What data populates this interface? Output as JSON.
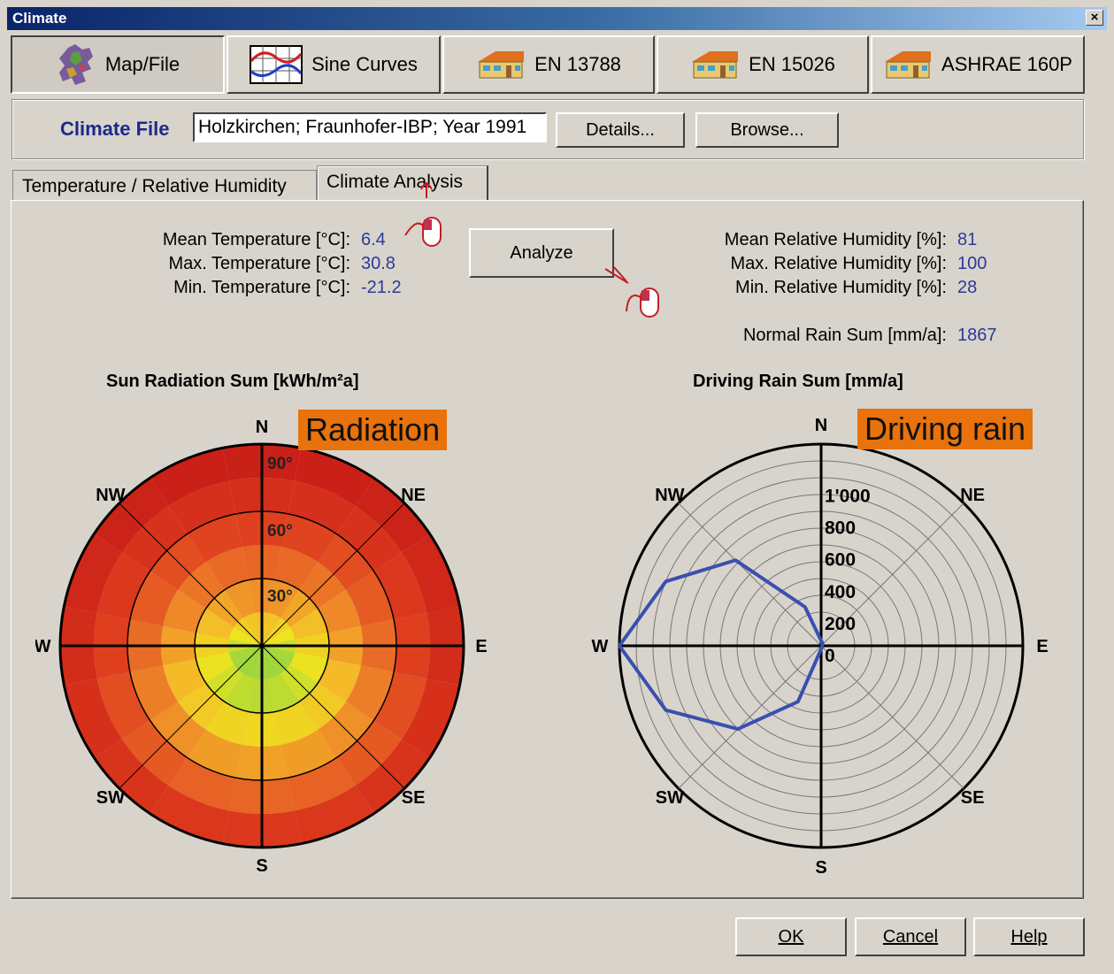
{
  "window": {
    "title": "Climate",
    "close_label": "×"
  },
  "mode_buttons": [
    {
      "label": "Map/File",
      "icon": "europe-map-icon",
      "active": true
    },
    {
      "label": "Sine Curves",
      "icon": "sine-curves-icon"
    },
    {
      "label": "EN 13788",
      "icon": "house-icon"
    },
    {
      "label": "EN 15026",
      "icon": "house-icon"
    },
    {
      "label": "ASHRAE 160P",
      "icon": "house-icon"
    }
  ],
  "file": {
    "label": "Climate File",
    "value": "Holzkirchen; Fraunhofer-IBP; Year 1991",
    "details_label": "Details...",
    "browse_label": "Browse..."
  },
  "tabs": [
    {
      "label": "Temperature / Relative Humidity"
    },
    {
      "label": "Climate Analysis",
      "active": true
    }
  ],
  "analysis": {
    "analyze_label": "Analyze",
    "temperature": [
      {
        "label": "Mean Temperature [°C]:",
        "value": "6.4"
      },
      {
        "label": "Max. Temperature [°C]:",
        "value": "30.8"
      },
      {
        "label": "Min. Temperature [°C]:",
        "value": "-21.2"
      }
    ],
    "humidity": [
      {
        "label": "Mean Relative Humidity [%]:",
        "value": "81"
      },
      {
        "label": "Max. Relative Humidity [%]:",
        "value": "100"
      },
      {
        "label": "Min. Relative Humidity [%]:",
        "value": "28"
      }
    ],
    "rain": {
      "label": "Normal Rain Sum [mm/a]:",
      "value": "1867"
    }
  },
  "radiation": {
    "title": "Sun Radiation Sum [kWh/m²a]",
    "overlay": "Radiation",
    "directions": [
      "N",
      "NE",
      "E",
      "SE",
      "S",
      "SW",
      "W",
      "NW"
    ],
    "angle_labels": [
      "90°",
      "60°",
      "30°"
    ],
    "colors": {
      "high": "#d42a1a",
      "mid": "#f0a020",
      "low": "#9cd040"
    }
  },
  "rain_chart": {
    "title": "Driving Rain Sum [mm/a]",
    "overlay": "Driving rain",
    "directions": [
      "N",
      "NE",
      "E",
      "SE",
      "S",
      "SW",
      "W",
      "NW"
    ],
    "radial_labels": [
      "1'000",
      "800",
      "600",
      "400",
      "200",
      "0"
    ]
  },
  "chart_data": {
    "type": "polar-line",
    "title": "Driving Rain Sum [mm/a]",
    "rlim": [
      0,
      1200
    ],
    "series": [
      {
        "color": "#3a4fb0",
        "points": [
          {
            "azimuth": 0,
            "value": 30
          },
          {
            "azimuth": 22.5,
            "value": 20
          },
          {
            "azimuth": 45,
            "value": 10
          },
          {
            "azimuth": 67.5,
            "value": 5
          },
          {
            "azimuth": 90,
            "value": 5
          },
          {
            "azimuth": 112.5,
            "value": 5
          },
          {
            "azimuth": 135,
            "value": 5
          },
          {
            "azimuth": 157.5,
            "value": 10
          },
          {
            "azimuth": 180,
            "value": 20
          },
          {
            "azimuth": 202.5,
            "value": 360
          },
          {
            "azimuth": 225,
            "value": 700
          },
          {
            "azimuth": 247.5,
            "value": 1000
          },
          {
            "azimuth": 270,
            "value": 1200
          },
          {
            "azimuth": 292.5,
            "value": 1000
          },
          {
            "azimuth": 315,
            "value": 720
          },
          {
            "azimuth": 337.5,
            "value": 250
          }
        ]
      }
    ]
  },
  "footer": {
    "ok_label": "OK",
    "cancel_label": "Cancel",
    "help_label": "Help"
  }
}
